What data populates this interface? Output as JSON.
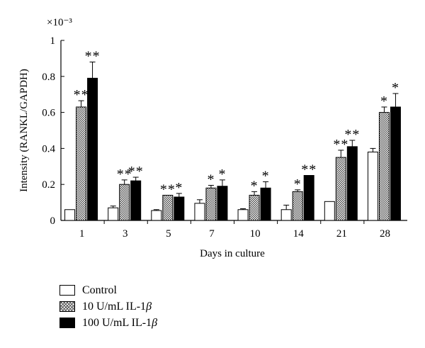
{
  "chart_data": {
    "type": "bar",
    "multiplier_label": "×10⁻³",
    "xlabel": "Days in culture",
    "ylabel": "Intensity (RANKL/GAPDH)",
    "ylim": [
      0,
      1
    ],
    "yticks": [
      "0",
      "0.2",
      "0.4",
      "0.6",
      "0.8",
      "1"
    ],
    "categories": [
      "1",
      "3",
      "5",
      "7",
      "10",
      "14",
      "21",
      "28"
    ],
    "series": [
      {
        "name": "Control",
        "fill": "open",
        "values": [
          0.06,
          0.07,
          0.055,
          0.095,
          0.06,
          0.06,
          0.105,
          0.38
        ],
        "errors": [
          0.0,
          0.01,
          0.005,
          0.02,
          0.005,
          0.025,
          0.0,
          0.02
        ],
        "stars": [
          "",
          "",
          "",
          "",
          "",
          "",
          "",
          ""
        ]
      },
      {
        "name": "10 U/mL IL-1",
        "fill": "hatch",
        "values": [
          0.63,
          0.2,
          0.14,
          0.18,
          0.14,
          0.16,
          0.35,
          0.6
        ],
        "errors": [
          0.035,
          0.025,
          0.0,
          0.015,
          0.02,
          0.01,
          0.04,
          0.03
        ],
        "stars": [
          "**",
          "**",
          "**",
          "*",
          "*",
          "*",
          "**",
          "*"
        ]
      },
      {
        "name": "100 U/mL IL-1",
        "fill": "solid",
        "values": [
          0.79,
          0.22,
          0.13,
          0.19,
          0.18,
          0.25,
          0.41,
          0.63
        ],
        "errors": [
          0.09,
          0.02,
          0.02,
          0.035,
          0.035,
          0.0,
          0.035,
          0.075
        ],
        "stars": [
          "**",
          "**",
          "*",
          "*",
          "*",
          "**",
          "**",
          "*"
        ]
      }
    ],
    "legend_position": "bottom-left",
    "grid": false
  },
  "legend": {
    "items": [
      {
        "label": "Control",
        "suffix": ""
      },
      {
        "label": "10 U/mL IL-1",
        "suffix": "β"
      },
      {
        "label": "100 U/mL IL-1",
        "suffix": "β"
      }
    ]
  }
}
